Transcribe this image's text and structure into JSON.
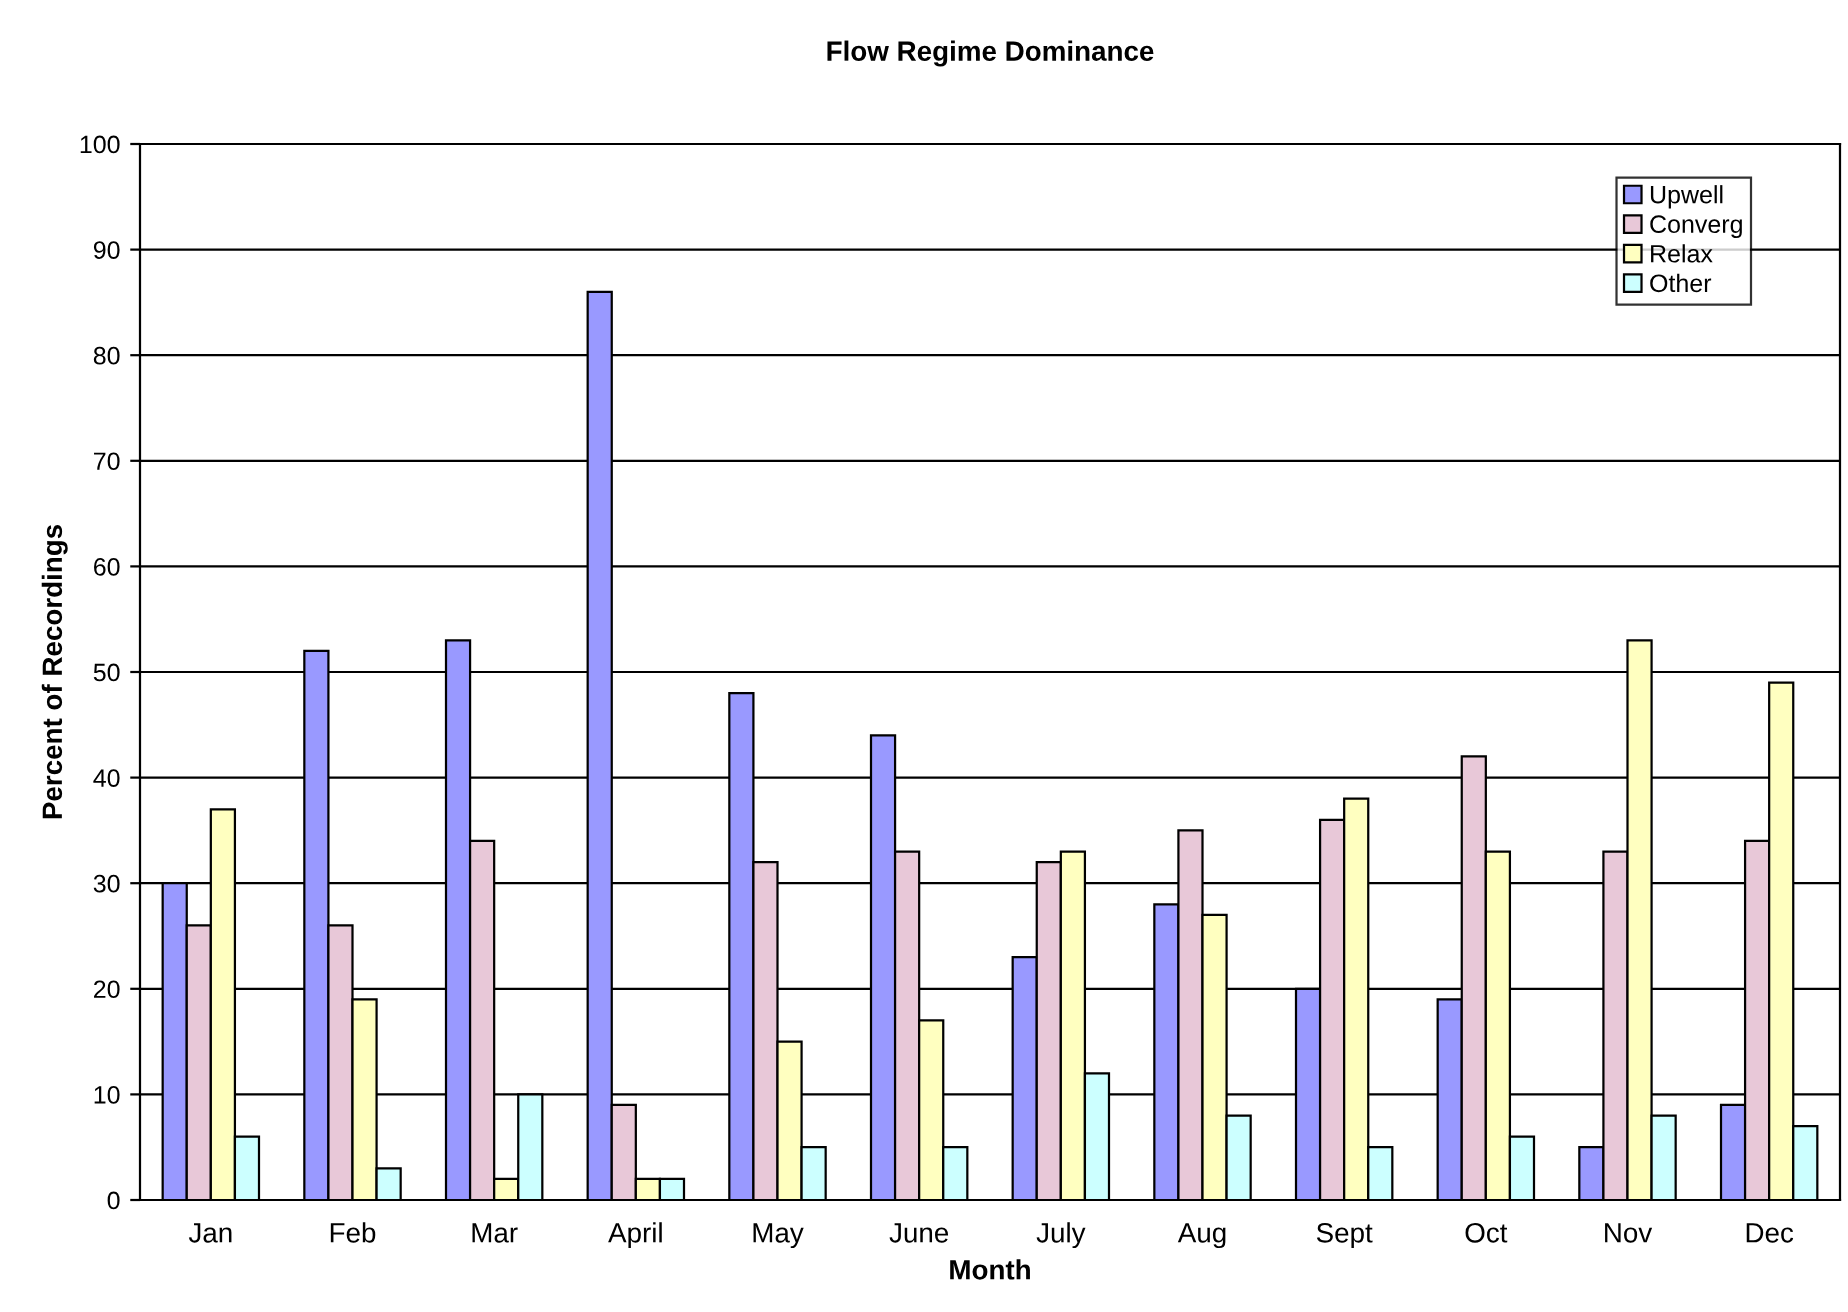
{
  "chart_data": {
    "type": "bar",
    "title": "Flow Regime Dominance",
    "xlabel": "Month",
    "ylabel": "Percent of Recordings",
    "categories": [
      "Jan",
      "Feb",
      "Mar",
      "April",
      "May",
      "June",
      "July",
      "Aug",
      "Sept",
      "Oct",
      "Nov",
      "Dec"
    ],
    "series": [
      {
        "name": "Upwell",
        "color": "#9999ff",
        "values": [
          30,
          52,
          53,
          86,
          48,
          44,
          23,
          28,
          20,
          19,
          5,
          9
        ]
      },
      {
        "name": "Converg",
        "color": "#e8c8d8",
        "values": [
          26,
          26,
          34,
          9,
          32,
          33,
          32,
          35,
          36,
          42,
          33,
          34
        ]
      },
      {
        "name": "Relax",
        "color": "#ffffc0",
        "values": [
          37,
          19,
          2,
          2,
          15,
          17,
          33,
          27,
          38,
          33,
          53,
          49
        ]
      },
      {
        "name": "Other",
        "color": "#ccffff",
        "values": [
          6,
          3,
          10,
          2,
          5,
          5,
          12,
          8,
          5,
          6,
          8,
          7
        ]
      }
    ],
    "ylim": [
      0,
      100
    ],
    "yticks": [
      0,
      10,
      20,
      30,
      40,
      50,
      60,
      70,
      80,
      90,
      100
    ],
    "grid": "y",
    "legend": "top right"
  }
}
